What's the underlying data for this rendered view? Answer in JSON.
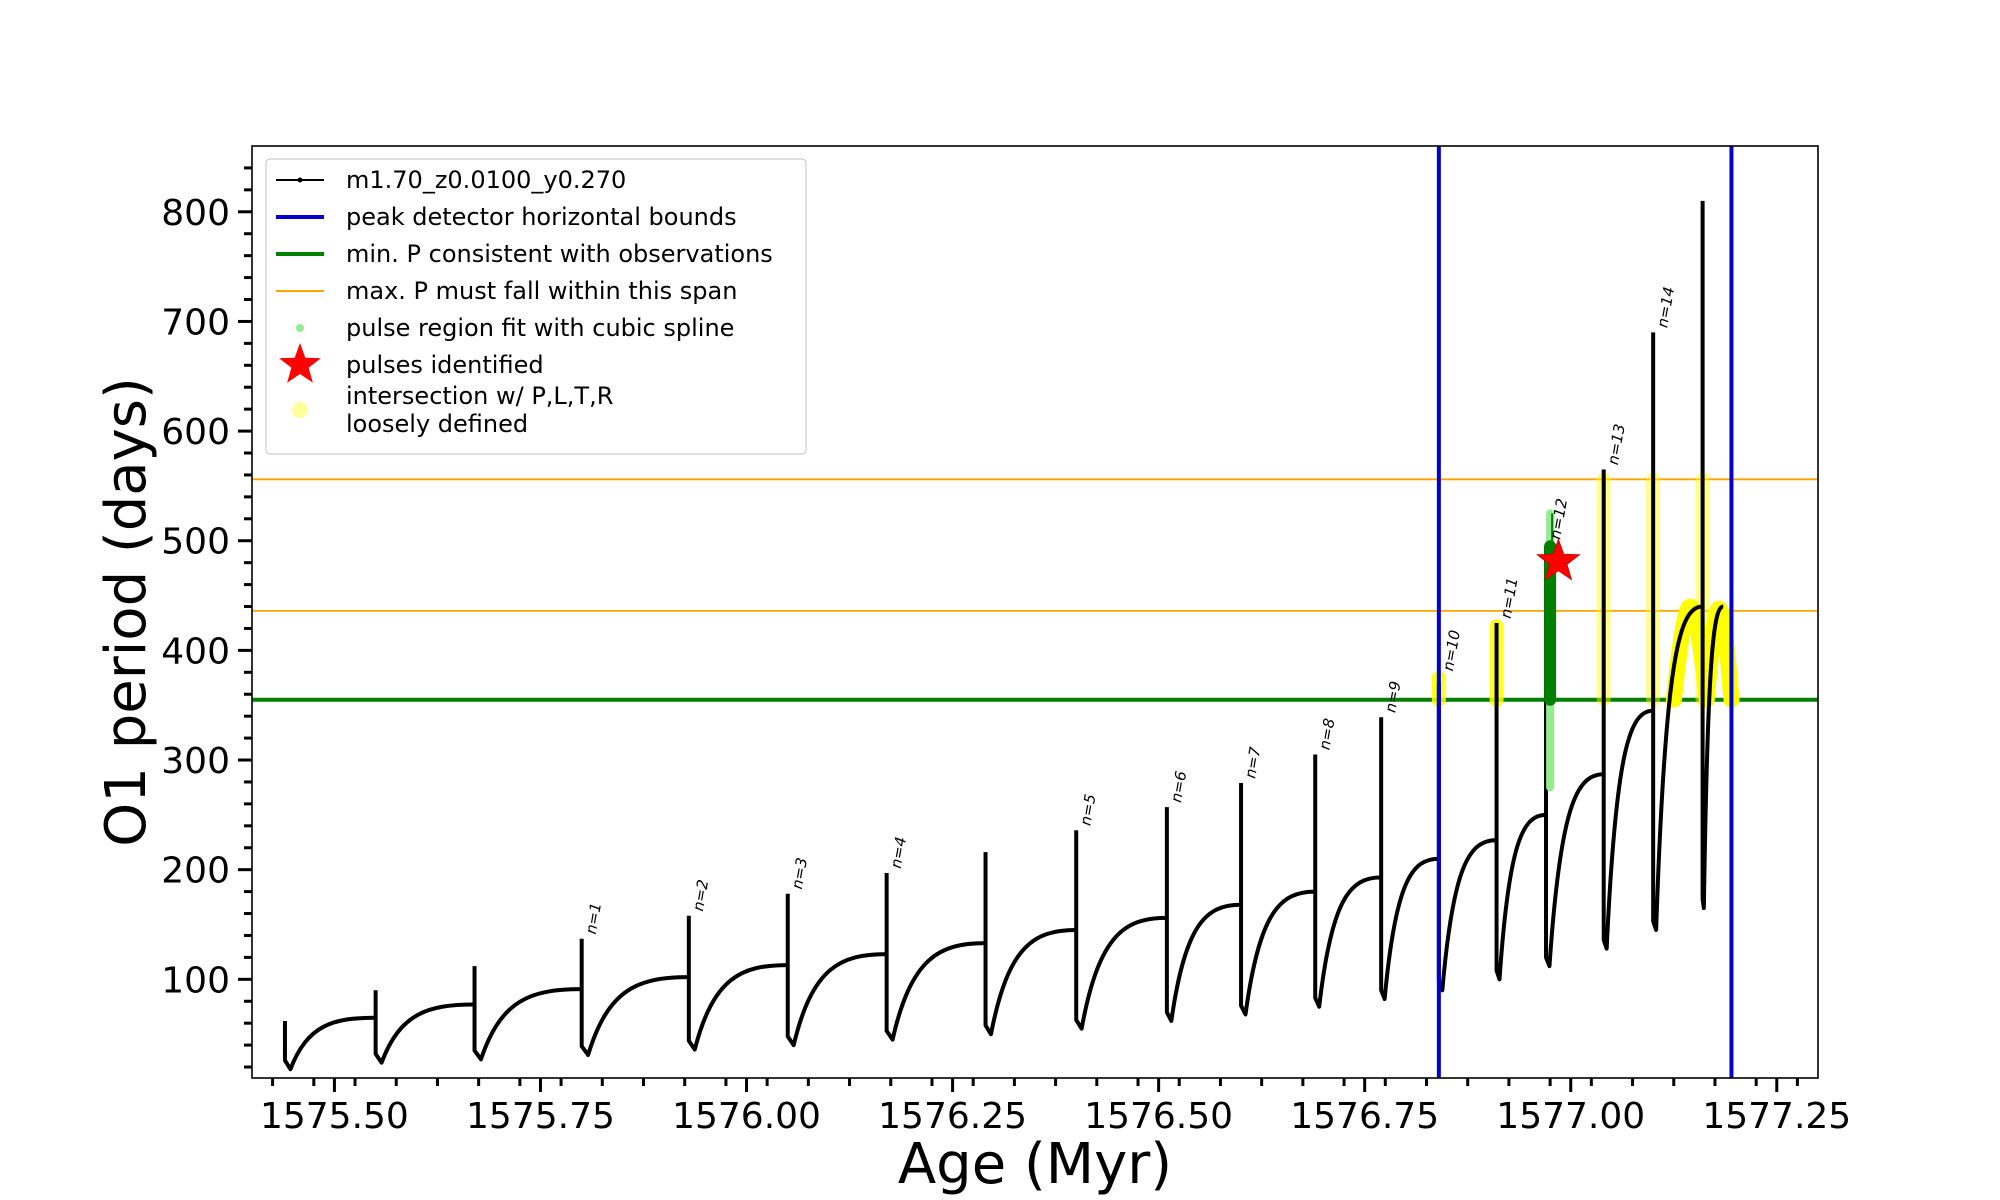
{
  "chart_data": {
    "type": "line",
    "xlabel": "Age (Myr)",
    "ylabel": "O1 period (days)",
    "xlim": [
      1575.4,
      1577.3
    ],
    "ylim": [
      10,
      860
    ],
    "xticks": [
      1575.5,
      1575.75,
      1576.0,
      1576.25,
      1576.5,
      1576.75,
      1577.0,
      1577.25
    ],
    "xtick_labels": [
      "1575.50",
      "1575.75",
      "1576.00",
      "1576.25",
      "1576.50",
      "1576.75",
      "1577.00",
      "1577.25"
    ],
    "yticks": [
      100,
      200,
      300,
      400,
      500,
      600,
      700,
      800
    ],
    "ytick_labels": [
      "100",
      "200",
      "300",
      "400",
      "500",
      "600",
      "700",
      "800"
    ],
    "grid": false,
    "legend_position": "top-left",
    "model_series": {
      "name": "m1.70_z0.0100_y0.270",
      "color": "#000000",
      "cycles": [
        {
          "age": 1575.44,
          "peak": 62,
          "min": 18,
          "end": 65
        },
        {
          "age": 1575.55,
          "peak": 90,
          "min": 24,
          "end": 77
        },
        {
          "age": 1575.67,
          "peak": 112,
          "min": 27,
          "end": 91
        },
        {
          "age": 1575.8,
          "peak": 137,
          "min": 31,
          "end": 102
        },
        {
          "age": 1575.93,
          "peak": 158,
          "min": 36,
          "end": 113
        },
        {
          "age": 1576.05,
          "peak": 178,
          "min": 40,
          "end": 123
        },
        {
          "age": 1576.17,
          "peak": 197,
          "min": 45,
          "end": 133
        },
        {
          "age": 1576.29,
          "peak": 216,
          "min": 50,
          "end": 145
        },
        {
          "age": 1576.4,
          "peak": 236,
          "min": 55,
          "end": 156
        },
        {
          "age": 1576.51,
          "peak": 257,
          "min": 62,
          "end": 168
        },
        {
          "age": 1576.6,
          "peak": 279,
          "min": 68,
          "end": 180
        },
        {
          "age": 1576.69,
          "peak": 305,
          "min": 75,
          "end": 193
        },
        {
          "age": 1576.77,
          "peak": 339,
          "min": 82,
          "end": 210
        },
        {
          "age": 1576.84,
          "peak": 370,
          "min": 90,
          "end": 227
        },
        {
          "age": 1576.91,
          "peak": 425,
          "min": 100,
          "end": 250
        },
        {
          "age": 1576.97,
          "peak": 495,
          "min": 112,
          "end": 287
        },
        {
          "age": 1577.04,
          "peak": 565,
          "min": 128,
          "end": 345
        },
        {
          "age": 1577.1,
          "peak": 690,
          "min": 145,
          "end": 440
        },
        {
          "age": 1577.16,
          "peak": 810,
          "min": 165,
          "end": 440
        }
      ]
    },
    "vertical_bounds": {
      "name": "peak detector horizontal bounds",
      "color": "#0000cc",
      "x": [
        1576.84,
        1577.195
      ]
    },
    "min_period_line": {
      "name": "min. P consistent with observations",
      "color": "#007f00",
      "y": 355
    },
    "max_period_span": {
      "name": "max. P must fall within this span",
      "color": "#ffa500",
      "y": [
        436,
        556
      ]
    },
    "spline_region": {
      "name": "pulse region fit with cubic spline",
      "color": "#90ee90",
      "x": 1576.975,
      "y_range": [
        275,
        525
      ]
    },
    "green_pulse_band": {
      "color": "#007f00",
      "x": 1576.975,
      "y_range": [
        355,
        495
      ]
    },
    "pulses_identified": {
      "name": "pulses identified",
      "color": "#ff0000",
      "x": 1576.985,
      "y": 481
    },
    "intersection_regions": {
      "name": "intersection w/ P,L,T,R\nloosely defined",
      "color": "#ffff00",
      "columns": [
        {
          "x": 1576.84,
          "y_range": [
            355,
            375
          ]
        },
        {
          "x": 1576.91,
          "y_range": [
            355,
            422
          ]
        },
        {
          "x": 1577.04,
          "y_range": [
            355,
            556
          ]
        },
        {
          "x": 1577.1,
          "y_range": [
            355,
            556
          ]
        },
        {
          "x": 1577.16,
          "y_range": [
            355,
            556
          ]
        }
      ],
      "arcs": [
        {
          "x0": 1577.125,
          "x1": 1577.165,
          "peak": 440
        },
        {
          "x0": 1577.165,
          "x1": 1577.195,
          "peak": 438
        }
      ]
    },
    "pulse_labels": [
      {
        "text": "n=1",
        "x": 1575.8,
        "y": 137
      },
      {
        "text": "n=2",
        "x": 1575.93,
        "y": 158
      },
      {
        "text": "n=3",
        "x": 1576.05,
        "y": 178
      },
      {
        "text": "n=4",
        "x": 1576.17,
        "y": 197
      },
      {
        "text": "n=5",
        "x": 1576.4,
        "y": 236
      },
      {
        "text": "n=6",
        "x": 1576.51,
        "y": 257
      },
      {
        "text": "n=7",
        "x": 1576.6,
        "y": 279
      },
      {
        "text": "n=8",
        "x": 1576.69,
        "y": 305
      },
      {
        "text": "n=9",
        "x": 1576.77,
        "y": 339
      },
      {
        "text": "n=10",
        "x": 1576.84,
        "y": 377
      },
      {
        "text": "n=11",
        "x": 1576.91,
        "y": 425
      },
      {
        "text": "n=12",
        "x": 1576.97,
        "y": 497
      },
      {
        "text": "n=13",
        "x": 1577.04,
        "y": 565
      },
      {
        "text": "n=14",
        "x": 1577.1,
        "y": 690
      }
    ],
    "legend": [
      {
        "label": "m1.70_z0.0100_y0.270",
        "kind": "line-dot",
        "color": "#000000"
      },
      {
        "label": "peak detector horizontal bounds",
        "kind": "line",
        "color": "#0000cc"
      },
      {
        "label": "min. P consistent with observations",
        "kind": "line",
        "color": "#007f00"
      },
      {
        "label": "max. P must fall within this span",
        "kind": "thin-line",
        "color": "#ffa500"
      },
      {
        "label": "pulse region fit with cubic spline",
        "kind": "dot",
        "color": "#90ee90"
      },
      {
        "label": "pulses identified",
        "kind": "star",
        "color": "#ff0000"
      },
      {
        "label": "intersection w/ P,L,T,R\nloosely defined",
        "kind": "circle",
        "color": "#ffff99"
      }
    ]
  }
}
